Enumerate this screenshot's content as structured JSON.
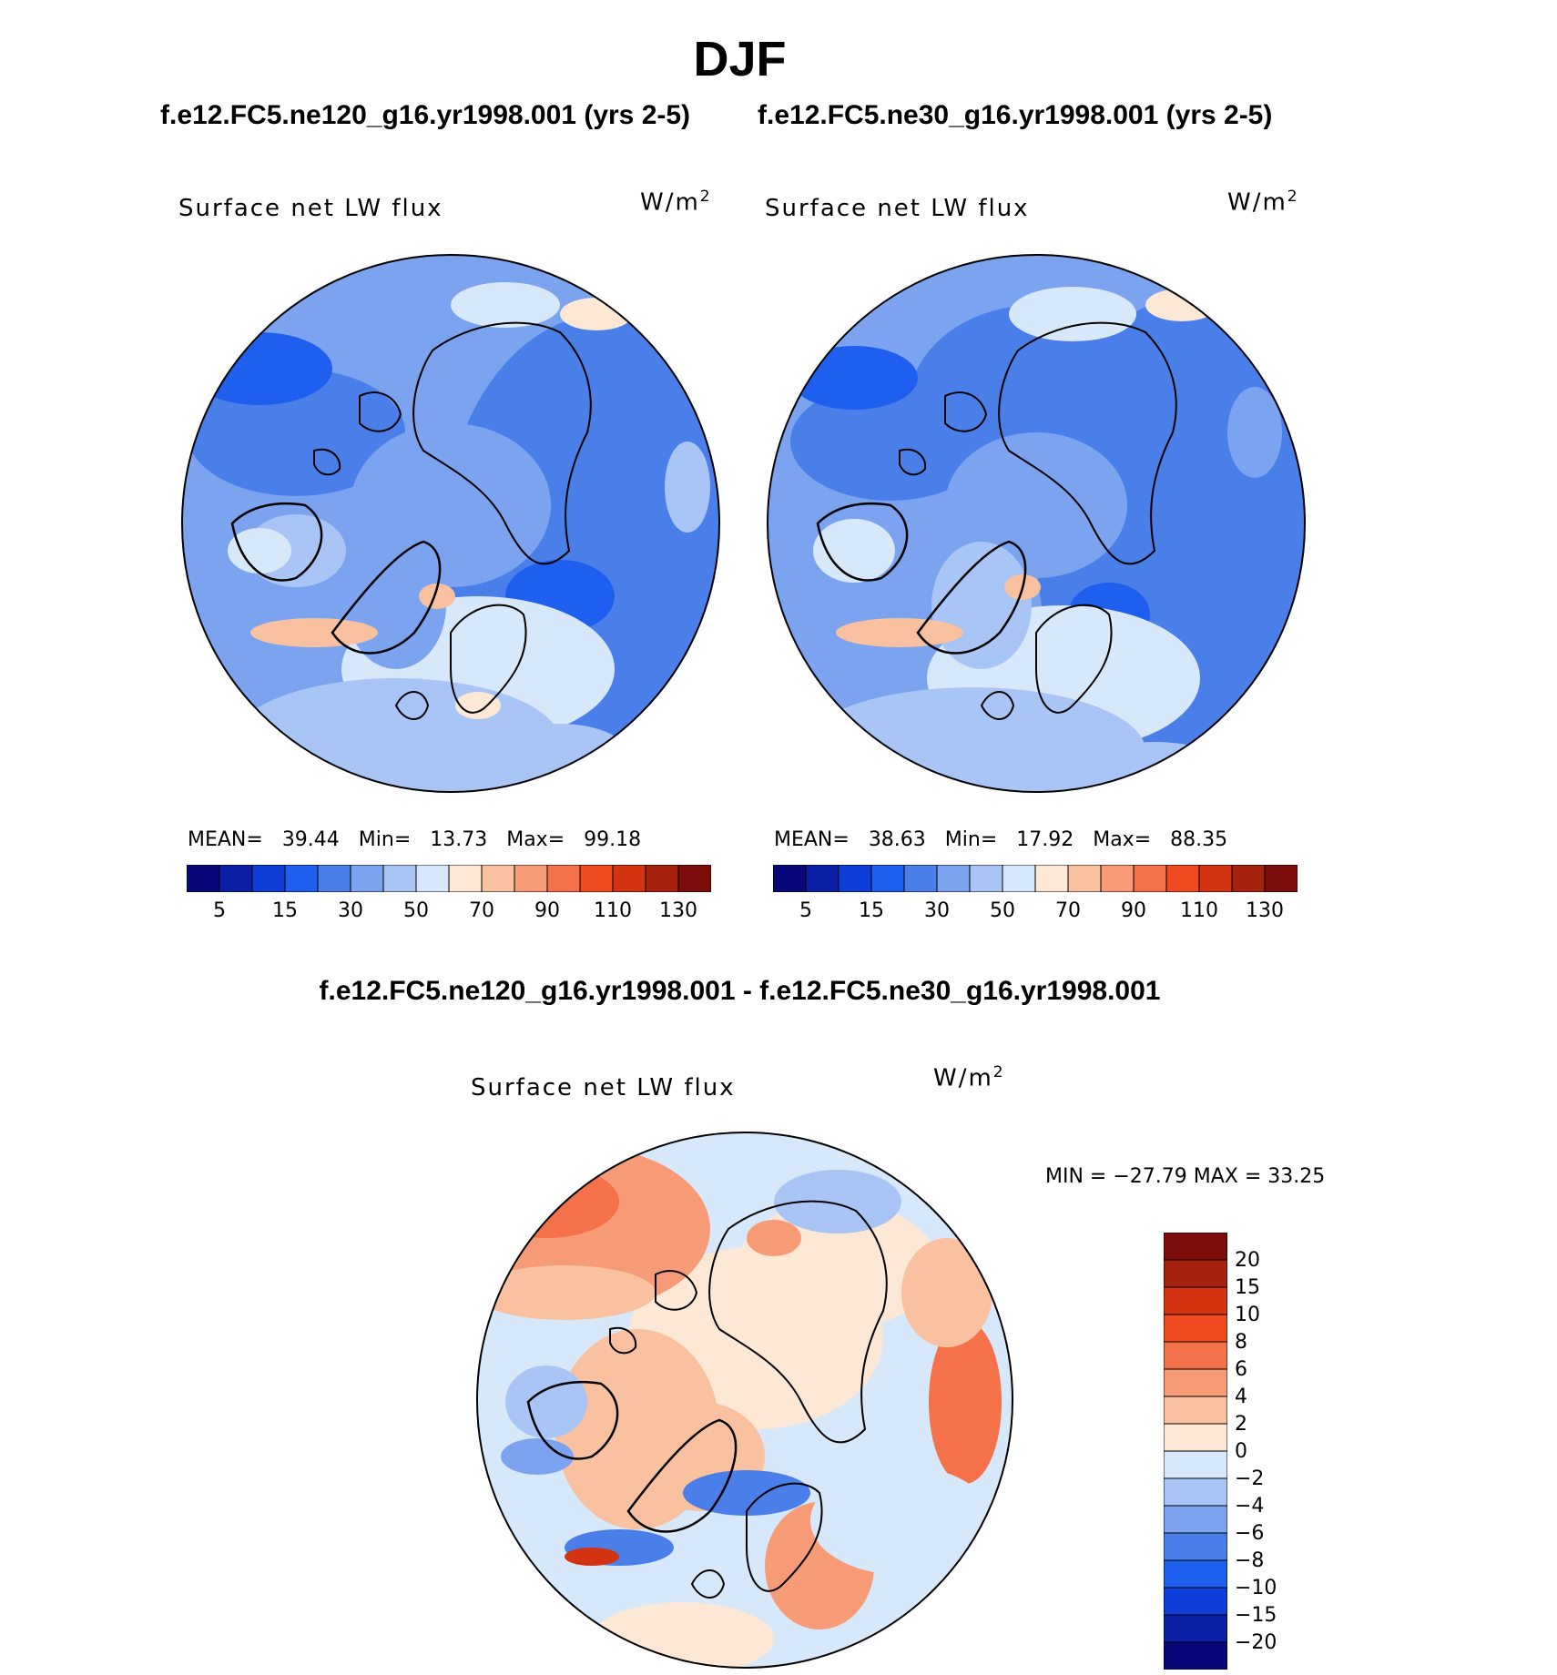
{
  "figure": {
    "title": "DJF",
    "units_base": "W/m",
    "units_exp": "2"
  },
  "panels": [
    {
      "run_title": "f.e12.FC5.ne120_g16.yr1998.001 (yrs 2-5)",
      "field_label": "Surface net LW flux",
      "mean_label": "MEAN=",
      "mean_value": "39.44",
      "min_label": "Min=",
      "min_value": "13.73",
      "max_label": "Max=",
      "max_value": "99.18"
    },
    {
      "run_title": "f.e12.FC5.ne30_g16.yr1998.001 (yrs 2-5)",
      "field_label": "Surface net LW flux",
      "mean_label": "MEAN=",
      "mean_value": "38.63",
      "min_label": "Min=",
      "min_value": "17.92",
      "max_label": "Max=",
      "max_value": "88.35"
    }
  ],
  "abs_colorbar": {
    "colors": [
      "#08087a",
      "#0a1fa6",
      "#0d3fd8",
      "#1f5fef",
      "#4a7fe9",
      "#7ba3f0",
      "#a8c5f6",
      "#d7e8fb",
      "#fde8d6",
      "#f9c1a0",
      "#f69b76",
      "#f4714a",
      "#f04a20",
      "#d33310",
      "#a6210e",
      "#7c0d0a"
    ],
    "tick_labels": [
      "5",
      "15",
      "30",
      "50",
      "70",
      "90",
      "110",
      "130"
    ]
  },
  "difference": {
    "title": "f.e12.FC5.ne120_g16.yr1998.001 - f.e12.FC5.ne30_g16.yr1998.001",
    "field_label": "Surface net LW flux",
    "minmax_text": "MIN = −27.79 MAX =   33.25",
    "colorbar": {
      "colors_top_to_bottom": [
        "#7c0d0a",
        "#a6210e",
        "#d33310",
        "#f04a20",
        "#f4714a",
        "#f69b76",
        "#f9c1a0",
        "#fde8d6",
        "#d7e8fb",
        "#a8c5f6",
        "#7ba3f0",
        "#4a7fe9",
        "#1f5fef",
        "#0d3fd8",
        "#0a1fa6",
        "#08087a"
      ],
      "tick_labels_top_to_bottom": [
        "20",
        "15",
        "10",
        "8",
        "6",
        "4",
        "2",
        "0",
        "−2",
        "−4",
        "−6",
        "−8",
        "−10",
        "−15",
        "−20"
      ]
    }
  }
}
